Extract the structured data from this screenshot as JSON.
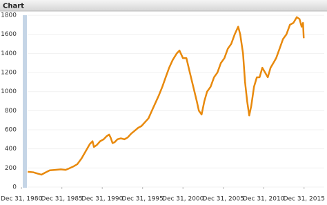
{
  "chart_data": {
    "type": "line",
    "title": "Chart",
    "x": [
      1981.77,
      1982.45,
      1983.05,
      1983.48,
      1983.91,
      1984.5,
      1985.19,
      1985.87,
      1986.47,
      1986.9,
      1987.41,
      1987.92,
      1988.44,
      1988.78,
      1989.12,
      1989.46,
      1989.8,
      1989.97,
      1990.32,
      1990.74,
      1991.17,
      1991.51,
      1991.85,
      1992.03,
      1992.28,
      1992.54,
      1992.88,
      1993.31,
      1993.74,
      1994.16,
      1994.59,
      1995.02,
      1995.44,
      1995.87,
      1996.3,
      1996.73,
      1997.15,
      1997.58,
      1998.01,
      1998.44,
      1998.86,
      1999.29,
      1999.72,
      2000.23,
      2000.57,
      2001.0,
      2001.43,
      2001.85,
      2002.28,
      2002.71,
      2002.97,
      2003.31,
      2003.65,
      2003.99,
      2004.42,
      2004.85,
      2005.27,
      2005.7,
      2006.13,
      2006.56,
      2006.98,
      2007.41,
      2007.84,
      2008.09,
      2008.44,
      2008.69,
      2008.95,
      2009.21,
      2009.46,
      2009.8,
      2010.15,
      2010.49,
      2010.83,
      2011.17,
      2011.51,
      2011.85,
      2012.2,
      2012.54,
      2012.97,
      2013.39,
      2013.82,
      2014.25,
      2014.68,
      2015.1,
      2015.44,
      2015.7,
      2015.87,
      2015.96
    ],
    "values": [
      160,
      155,
      140,
      130,
      150,
      175,
      180,
      185,
      180,
      195,
      215,
      240,
      300,
      350,
      400,
      450,
      480,
      420,
      440,
      480,
      500,
      530,
      550,
      520,
      460,
      470,
      500,
      510,
      500,
      520,
      560,
      590,
      620,
      640,
      680,
      720,
      800,
      880,
      960,
      1050,
      1150,
      1250,
      1330,
      1400,
      1430,
      1350,
      1350,
      1200,
      1050,
      900,
      800,
      760,
      900,
      1000,
      1050,
      1150,
      1200,
      1300,
      1350,
      1450,
      1500,
      1600,
      1680,
      1600,
      1400,
      1100,
      900,
      750,
      850,
      1050,
      1150,
      1150,
      1250,
      1200,
      1150,
      1250,
      1300,
      1350,
      1450,
      1550,
      1600,
      1700,
      1720,
      1780,
      1760,
      1680,
      1720,
      1560
    ],
    "color": "#e8890c",
    "xlim": [
      1980.9,
      2018.5
    ],
    "xticks": [
      {
        "value": 1981,
        "label": "Dec 31, 1980"
      },
      {
        "value": 1986,
        "label": "Dec 31, 1985"
      },
      {
        "value": 1991,
        "label": "Dec 31, 1990"
      },
      {
        "value": 1996,
        "label": "Dec 31, 1995"
      },
      {
        "value": 2001,
        "label": "Dec 31, 2000"
      },
      {
        "value": 2006,
        "label": "Dec 31, 2005"
      },
      {
        "value": 2011,
        "label": "Dec 31, 2010"
      },
      {
        "value": 2016,
        "label": "Dec 31, 2015"
      }
    ],
    "ylim": [
      0,
      1815
    ],
    "yticks": [
      0,
      200,
      400,
      600,
      800,
      1000,
      1200,
      1400,
      1600,
      1800
    ],
    "grid": true
  }
}
